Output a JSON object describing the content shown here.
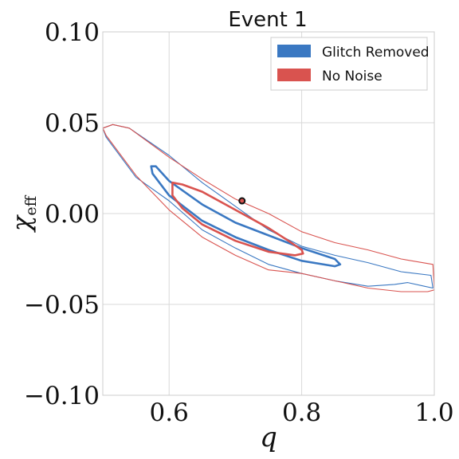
{
  "chart_data": {
    "type": "contour",
    "title": "Event 1",
    "xlabel": "q",
    "ylabel": "χ",
    "ylabel_sub": "eff",
    "xlim": [
      0.5,
      1.0
    ],
    "ylim": [
      -0.1,
      0.1
    ],
    "xticks": [
      0.6,
      0.8,
      1.0
    ],
    "xtick_labels": [
      "0.6",
      "0.8",
      "1.0"
    ],
    "yticks": [
      0.1,
      0.05,
      0.0,
      -0.05,
      -0.1
    ],
    "ytick_labels": [
      "0.10",
      "0.05",
      "0.00",
      "−0.05",
      "−0.10"
    ],
    "grid": true,
    "legend_position": "top-right",
    "series": [
      {
        "name": "Glitch Removed",
        "color": "#3a78c2",
        "contours": [
          {
            "level": "inner",
            "points": [
              [
                0.573,
                0.026
              ],
              [
                0.58,
                0.026
              ],
              [
                0.6,
                0.018
              ],
              [
                0.65,
                0.005
              ],
              [
                0.7,
                -0.005
              ],
              [
                0.75,
                -0.012
              ],
              [
                0.8,
                -0.019
              ],
              [
                0.85,
                -0.025
              ],
              [
                0.858,
                -0.028
              ],
              [
                0.85,
                -0.029
              ],
              [
                0.8,
                -0.026
              ],
              [
                0.75,
                -0.02
              ],
              [
                0.7,
                -0.013
              ],
              [
                0.65,
                -0.004
              ],
              [
                0.6,
                0.01
              ],
              [
                0.575,
                0.022
              ]
            ]
          },
          {
            "level": "outer",
            "points": [
              [
                0.5,
                0.047
              ],
              [
                0.515,
                0.049
              ],
              [
                0.54,
                0.047
              ],
              [
                0.6,
                0.032
              ],
              [
                0.65,
                0.017
              ],
              [
                0.7,
                0.004
              ],
              [
                0.75,
                -0.009
              ],
              [
                0.8,
                -0.018
              ],
              [
                0.85,
                -0.023
              ],
              [
                0.9,
                -0.027
              ],
              [
                0.95,
                -0.032
              ],
              [
                0.995,
                -0.034
              ],
              [
                0.998,
                -0.041
              ],
              [
                0.985,
                -0.04
              ],
              [
                0.96,
                -0.038
              ],
              [
                0.94,
                -0.039
              ],
              [
                0.9,
                -0.04
              ],
              [
                0.85,
                -0.037
              ],
              [
                0.8,
                -0.033
              ],
              [
                0.75,
                -0.028
              ],
              [
                0.7,
                -0.019
              ],
              [
                0.65,
                -0.009
              ],
              [
                0.6,
                0.007
              ],
              [
                0.55,
                0.02
              ],
              [
                0.505,
                0.042
              ]
            ]
          }
        ]
      },
      {
        "name": "No Noise",
        "color": "#d9534f",
        "contours": [
          {
            "level": "inner",
            "points": [
              [
                0.605,
                0.017
              ],
              [
                0.62,
                0.016
              ],
              [
                0.65,
                0.012
              ],
              [
                0.7,
                0.002
              ],
              [
                0.75,
                -0.008
              ],
              [
                0.78,
                -0.015
              ],
              [
                0.8,
                -0.02
              ],
              [
                0.802,
                -0.022
              ],
              [
                0.79,
                -0.023
              ],
              [
                0.75,
                -0.021
              ],
              [
                0.7,
                -0.015
              ],
              [
                0.65,
                -0.006
              ],
              [
                0.62,
                0.003
              ],
              [
                0.605,
                0.01
              ]
            ]
          },
          {
            "level": "outer",
            "points": [
              [
                0.5,
                0.047
              ],
              [
                0.515,
                0.049
              ],
              [
                0.54,
                0.047
              ],
              [
                0.6,
                0.031
              ],
              [
                0.65,
                0.019
              ],
              [
                0.7,
                0.008
              ],
              [
                0.75,
                0.0
              ],
              [
                0.8,
                -0.01
              ],
              [
                0.85,
                -0.016
              ],
              [
                0.9,
                -0.02
              ],
              [
                0.95,
                -0.025
              ],
              [
                0.998,
                -0.028
              ],
              [
                1.0,
                -0.042
              ],
              [
                0.99,
                -0.043
              ],
              [
                0.95,
                -0.043
              ],
              [
                0.9,
                -0.041
              ],
              [
                0.85,
                -0.037
              ],
              [
                0.8,
                -0.033
              ],
              [
                0.75,
                -0.031
              ],
              [
                0.7,
                -0.023
              ],
              [
                0.65,
                -0.013
              ],
              [
                0.6,
                0.002
              ],
              [
                0.55,
                0.021
              ],
              [
                0.505,
                0.043
              ]
            ]
          }
        ]
      }
    ],
    "marker": {
      "x": 0.71,
      "y": 0.007,
      "fill": "#d9534f",
      "edge": "#111111"
    }
  }
}
